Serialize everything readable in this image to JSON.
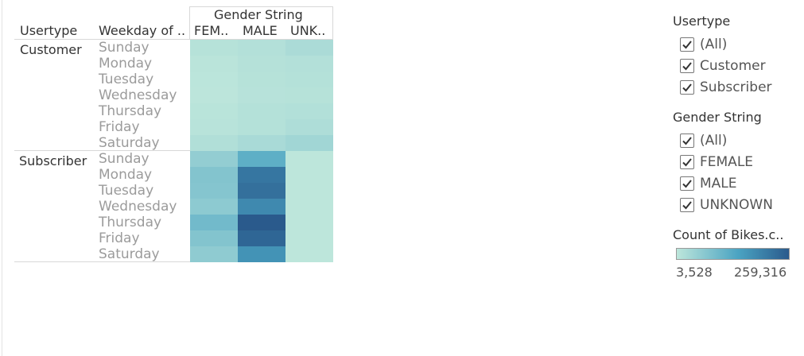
{
  "chart_data": {
    "type": "heatmap",
    "column_group_title": "Gender String",
    "row_header_usertype": "Usertype",
    "row_header_weekday": "Weekday of ..",
    "columns": [
      "FEM..",
      "MALE",
      "UNK.."
    ],
    "usertypes": [
      "Customer",
      "Subscriber"
    ],
    "weekdays": [
      "Sunday",
      "Monday",
      "Tuesday",
      "Wednesday",
      "Thursday",
      "Friday",
      "Saturday"
    ],
    "values": {
      "Customer": [
        [
          12000,
          16000,
          26000
        ],
        [
          7000,
          13000,
          16000
        ],
        [
          6000,
          12000,
          14000
        ],
        [
          5000,
          11000,
          12000
        ],
        [
          8000,
          14000,
          17000
        ],
        [
          10000,
          15000,
          22000
        ],
        [
          18000,
          28000,
          38000
        ]
      ],
      "Subscriber": [
        [
          55000,
          120000,
          3528
        ],
        [
          75000,
          215000,
          3528
        ],
        [
          72000,
          225000,
          3528
        ],
        [
          62000,
          185000,
          3528
        ],
        [
          95000,
          259316,
          3528
        ],
        [
          75000,
          240000,
          3528
        ],
        [
          60000,
          170000,
          3528
        ]
      ]
    },
    "color_range": [
      3528,
      259316
    ],
    "color_low": "#bde6db",
    "color_mid": "#4aa3c2",
    "color_high": "#2a5a8c"
  },
  "filters": [
    {
      "title": "Usertype",
      "items": [
        "(All)",
        "Customer",
        "Subscriber"
      ]
    },
    {
      "title": "Gender String",
      "items": [
        "(All)",
        "FEMALE",
        "MALE",
        "UNKNOWN"
      ]
    }
  ],
  "legend": {
    "title": "Count of Bikes.c..",
    "min_label": "3,528",
    "max_label": "259,316"
  }
}
